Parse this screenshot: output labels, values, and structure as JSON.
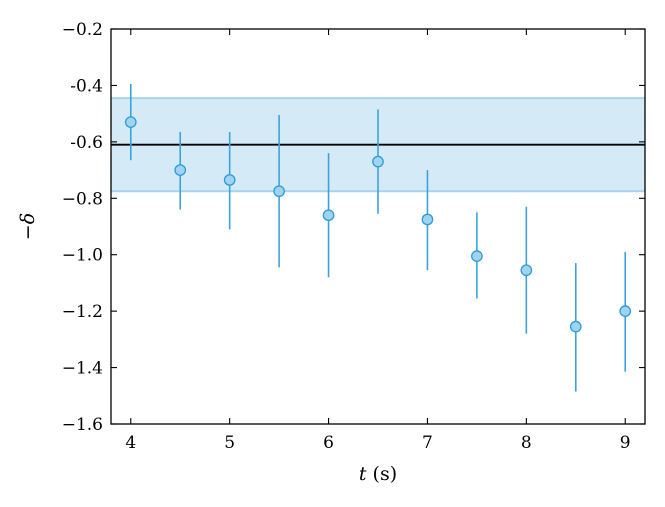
{
  "chart_data": {
    "type": "scatter",
    "title": "",
    "xlabel": {
      "var": "t",
      "unit": "(s)"
    },
    "ylabel": "−δ",
    "xlim": [
      3.8,
      9.2
    ],
    "ylim": [
      -1.6,
      -0.2
    ],
    "xticks": [
      4,
      5,
      6,
      7,
      8,
      9
    ],
    "xtick_labels": [
      "4",
      "5",
      "6",
      "7",
      "8",
      "9"
    ],
    "yticks": [
      -1.6,
      -1.4,
      -1.2,
      -1.0,
      -0.8,
      -0.6,
      -0.4,
      -0.2
    ],
    "ytick_labels": [
      "−1.6",
      "−1.4",
      "−1.2",
      "−1.0",
      "−0.8",
      "-0.6",
      "-0.4",
      "−0.2"
    ],
    "grid": false,
    "reference_line": {
      "y": -0.61,
      "color": "#000000"
    },
    "band": {
      "y_low": -0.775,
      "y_high": -0.445,
      "color": "#d4ebf7",
      "edge_color": "#a8d3ee"
    },
    "series": [
      {
        "marker_color": "#9fd3ef",
        "marker_edge": "#2e9bd6",
        "errorbar_color": "#3aa3dc",
        "points": [
          {
            "x": 4.0,
            "y": -0.53,
            "y_low": -0.665,
            "y_high": -0.395
          },
          {
            "x": 4.5,
            "y": -0.7,
            "y_low": -0.84,
            "y_high": -0.565
          },
          {
            "x": 5.0,
            "y": -0.735,
            "y_low": -0.91,
            "y_high": -0.565
          },
          {
            "x": 5.5,
            "y": -0.775,
            "y_low": -1.045,
            "y_high": -0.505
          },
          {
            "x": 6.0,
            "y": -0.86,
            "y_low": -1.08,
            "y_high": -0.64
          },
          {
            "x": 6.5,
            "y": -0.67,
            "y_low": -0.855,
            "y_high": -0.485
          },
          {
            "x": 7.0,
            "y": -0.875,
            "y_low": -1.055,
            "y_high": -0.7
          },
          {
            "x": 7.5,
            "y": -1.005,
            "y_low": -1.155,
            "y_high": -0.85
          },
          {
            "x": 8.0,
            "y": -1.055,
            "y_low": -1.28,
            "y_high": -0.83
          },
          {
            "x": 8.5,
            "y": -1.255,
            "y_low": -1.485,
            "y_high": -1.03
          },
          {
            "x": 9.0,
            "y": -1.2,
            "y_low": -1.415,
            "y_high": -0.99
          }
        ]
      }
    ]
  }
}
